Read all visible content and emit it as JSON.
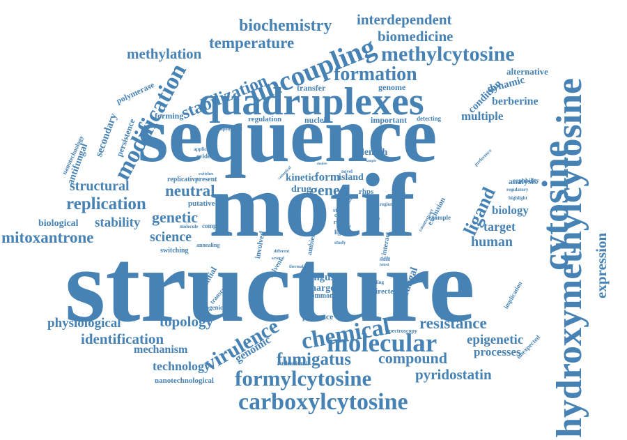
{
  "colors": {
    "word": "#4682b4",
    "background": "#ffffff"
  },
  "words": [
    "structure",
    "sequence",
    "motif",
    "quadruplexes",
    "hydroxymethylcytosine",
    "cytosine",
    "methylcytosine",
    "uncoupling",
    "formation",
    "modification",
    "stabilization",
    "carboxylcytosine",
    "formylcytosine",
    "molecular",
    "chemical",
    "virulence",
    "fumigatus",
    "biochemistry",
    "biomedicine",
    "interdependent",
    "temperature",
    "methylation",
    "mitoxantrone",
    "replication",
    "structural",
    "neutral",
    "genetic",
    "science",
    "ligand",
    "resistance",
    "topology",
    "identification",
    "physiological",
    "gene",
    "stability",
    "expression",
    "compound",
    "pyridostatin",
    "human",
    "target",
    "biology",
    "epigenetic",
    "processes",
    "technology",
    "mechanism",
    "genomic",
    "multiple",
    "berberine",
    "dynamic",
    "condition",
    "alternative",
    "secondary",
    "antifungal",
    "persistence",
    "polymerase",
    "nanotechnology",
    "forming",
    "nucleic",
    "regulation",
    "important",
    "detecting",
    "length",
    "kinetic",
    "form",
    "island",
    "drug",
    "genome",
    "transfer",
    "biological",
    "putative",
    "present",
    "replicative",
    "fungus",
    "charge",
    "common",
    "presence",
    "fungal",
    "directed",
    "potential",
    "pathogenic",
    "transcription",
    "implication",
    "unexpected",
    "analysis",
    "capability",
    "metal",
    "exclusion",
    "rhps",
    "interact",
    "light",
    "cell",
    "rich",
    "involved",
    "ambient",
    "solvent",
    "switching",
    "annealing",
    "complex",
    "molecule",
    "evidence",
    "application",
    "impediment",
    "spectroscopy",
    "rutheniumii",
    "nanotechnological",
    "example",
    "region",
    "counterpart",
    "regulatory",
    "highlight",
    "preference",
    "study",
    "binding",
    "thermal",
    "several",
    "different",
    "found",
    "stable",
    "folded",
    "canonical",
    "sample",
    "related",
    "switches",
    "novel",
    "double",
    "site",
    "recent",
    "role",
    "str",
    "tune"
  ]
}
